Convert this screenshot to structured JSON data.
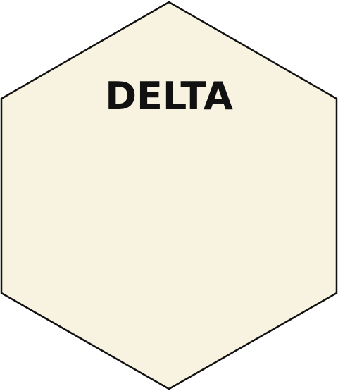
{
  "hexagon": {
    "label": "DELTA",
    "fill_color": "#f8f3e1",
    "stroke_color": "#111111"
  }
}
